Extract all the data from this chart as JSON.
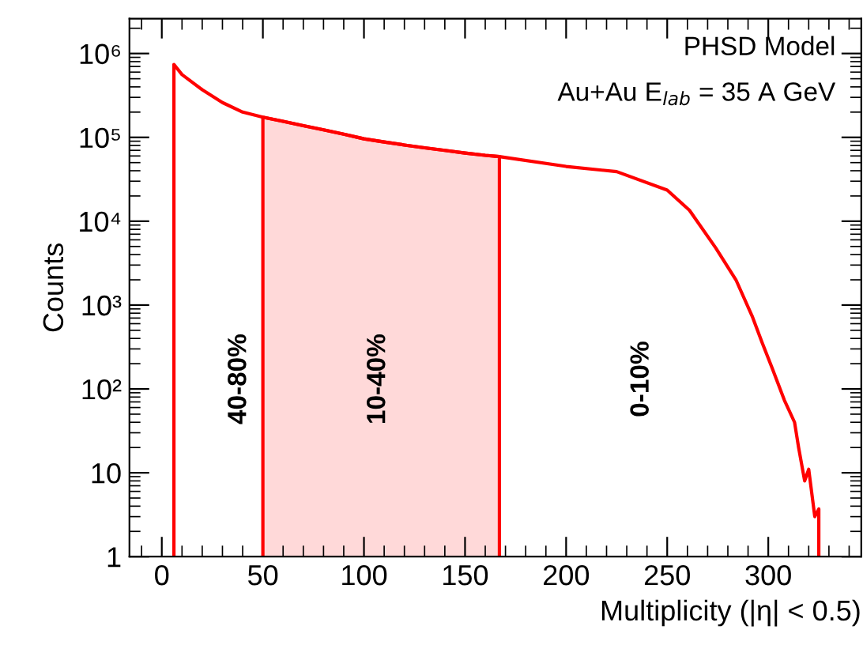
{
  "chart_data": {
    "type": "line",
    "xlabel": "Multiplicity (|η| < 0.5)",
    "ylabel": "Counts",
    "log": "y",
    "xlim": [
      -16,
      346
    ],
    "ylim": [
      1,
      2600000
    ],
    "xticks": [
      0,
      50,
      100,
      150,
      200,
      250,
      300
    ],
    "yticks": [
      1,
      10,
      {
        "value": 100,
        "label": "10²"
      },
      {
        "value": 1000,
        "label": "10³"
      },
      {
        "value": 10000,
        "label": "10⁴"
      },
      {
        "value": 100000,
        "label": "10⁵"
      },
      {
        "value": 1000000,
        "label": "10⁶"
      }
    ],
    "grid": false,
    "series": [
      {
        "type": "area",
        "color": "#ffd9d9",
        "x": [
          50,
          60,
          70,
          80,
          90,
          100,
          110,
          120,
          130,
          140,
          150,
          160,
          167
        ],
        "values": [
          174000,
          155000,
          138000,
          123000,
          109000,
          96000,
          88000,
          81000,
          75000,
          70000,
          65000,
          61000,
          59000
        ]
      },
      {
        "color": "#ff0000",
        "x": [
          6,
          6,
          10,
          20,
          30,
          40,
          50,
          60,
          70,
          80,
          90,
          100,
          110,
          120,
          130,
          140,
          150,
          160,
          167,
          200,
          225,
          250,
          261,
          274,
          284,
          292,
          297,
          302,
          308,
          313,
          315,
          318,
          320,
          323,
          325,
          325
        ],
        "values": [
          1,
          740000,
          560000,
          370000,
          260000,
          200000,
          174000,
          155000,
          138000,
          123000,
          109000,
          96000,
          88000,
          81000,
          75000,
          70000,
          65000,
          61000,
          59000,
          45000,
          39000,
          23500,
          13500,
          4800,
          2000,
          740,
          355,
          175,
          73,
          40,
          20,
          8,
          11,
          3,
          3.7,
          1
        ]
      }
    ],
    "annotations": [
      "PHSD Model",
      "Au+Au E$_{lab}$ = 35 A GeV",
      "40-80%",
      "10-40%",
      "0-10%"
    ]
  }
}
